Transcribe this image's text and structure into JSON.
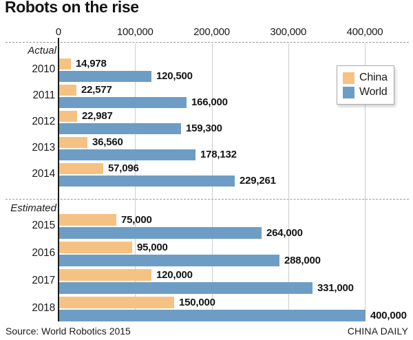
{
  "title": "Robots on the rise",
  "source": "Source: World Robotics 2015",
  "credit": "CHINA DAILY",
  "legend": {
    "items": [
      {
        "label": "China",
        "color": "#F5C283"
      },
      {
        "label": "World",
        "color": "#6D9DC5"
      }
    ]
  },
  "colors": {
    "china_bar": "#F5C283",
    "world_bar": "#6D9DC5",
    "gridline": "#cdcdcd",
    "axis_line": "#1a1a1a",
    "text": "#1a1a1a"
  },
  "chart_data": {
    "type": "bar",
    "orientation": "horizontal",
    "title": "Robots on the rise",
    "xlabel": "",
    "ylabel": "",
    "xlim": [
      0,
      400000
    ],
    "grid": true,
    "legend_position": "top-right",
    "x_ticks": [
      0,
      100000,
      200000,
      300000,
      400000
    ],
    "x_tick_labels": [
      "0",
      "100,000",
      "200,000",
      "300,000",
      "400,000"
    ],
    "series_names": [
      "China",
      "World"
    ],
    "categories": [
      "2010",
      "2011",
      "2012",
      "2013",
      "2014",
      "2015",
      "2016",
      "2017",
      "2018"
    ],
    "series": [
      {
        "name": "China",
        "values": [
          14978,
          22577,
          22987,
          36560,
          57096,
          75000,
          95000,
          120000,
          150000
        ]
      },
      {
        "name": "World",
        "values": [
          120500,
          166000,
          159300,
          178132,
          229261,
          264000,
          288000,
          331000,
          400000
        ]
      }
    ],
    "sections": [
      {
        "label": "Actual",
        "rows": [
          {
            "year": "2010",
            "china": 14978,
            "china_label": "14,978",
            "world": 120500,
            "world_label": "120,500"
          },
          {
            "year": "2011",
            "china": 22577,
            "china_label": "22,577",
            "world": 166000,
            "world_label": "166,000"
          },
          {
            "year": "2012",
            "china": 22987,
            "china_label": "22,987",
            "world": 159300,
            "world_label": "159,300"
          },
          {
            "year": "2013",
            "china": 36560,
            "china_label": "36,560",
            "world": 178132,
            "world_label": "178,132"
          },
          {
            "year": "2014",
            "china": 57096,
            "china_label": "57,096",
            "world": 229261,
            "world_label": "229,261"
          }
        ]
      },
      {
        "label": "Estimated",
        "rows": [
          {
            "year": "2015",
            "china": 75000,
            "china_label": "75,000",
            "world": 264000,
            "world_label": "264,000"
          },
          {
            "year": "2016",
            "china": 95000,
            "china_label": "95,000",
            "world": 288000,
            "world_label": "288,000"
          },
          {
            "year": "2017",
            "china": 120000,
            "china_label": "120,000",
            "world": 331000,
            "world_label": "331,000"
          },
          {
            "year": "2018",
            "china": 150000,
            "china_label": "150,000",
            "world": 400000,
            "world_label": "400,000"
          }
        ]
      }
    ]
  }
}
